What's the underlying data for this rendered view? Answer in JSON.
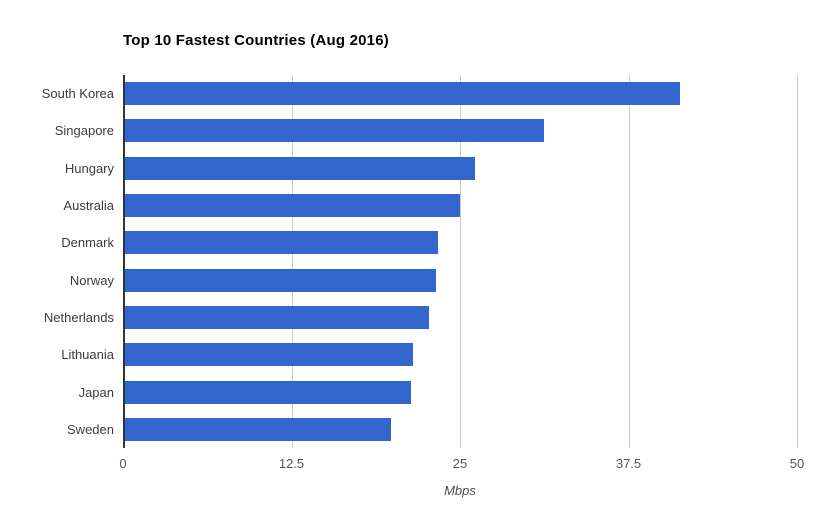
{
  "chart_data": {
    "type": "bar",
    "orientation": "horizontal",
    "title": "Top 10 Fastest Countries (Aug 2016)",
    "xlabel": "Mbps",
    "categories": [
      "South Korea",
      "Singapore",
      "Hungary",
      "Australia",
      "Denmark",
      "Norway",
      "Netherlands",
      "Lithuania",
      "Japan",
      "Sweden"
    ],
    "values": [
      41.3,
      31.2,
      26.1,
      25.0,
      23.4,
      23.2,
      22.7,
      21.5,
      21.4,
      19.9
    ],
    "xlim": [
      0,
      50
    ],
    "xticks": [
      "0",
      "12.5",
      "25",
      "37.5",
      "50"
    ],
    "grid": "vertical-gridlines-only",
    "legend": "none",
    "bar_color": "#3366cc",
    "colors": {
      "background": "#ffffff",
      "gridline": "#cccccc",
      "zero_baseline": "#333333",
      "title_text": "#000000",
      "category_text": "#3c3c3c",
      "tick_text": "#565656",
      "axis_title_text": "#4d4d4d"
    }
  }
}
